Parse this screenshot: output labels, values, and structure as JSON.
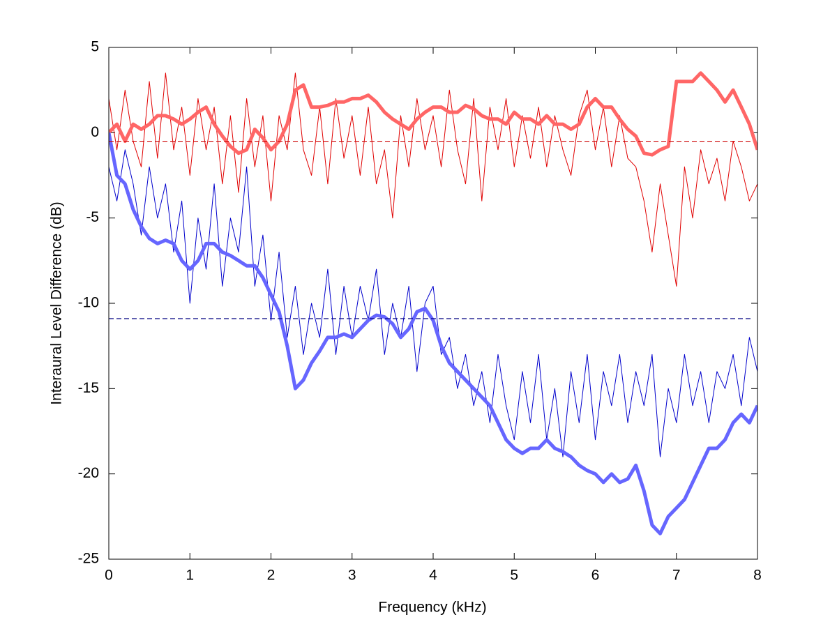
{
  "chart_data": {
    "type": "line",
    "xlabel": "Frequency (kHz)",
    "ylabel": "Interaural Level Difference (dB)",
    "x": [
      0,
      0.1,
      0.2,
      0.3,
      0.4,
      0.5,
      0.6,
      0.7,
      0.8,
      0.9,
      1,
      1.1,
      1.2,
      1.3,
      1.4,
      1.5,
      1.6,
      1.7,
      1.8,
      1.9,
      2,
      2.1,
      2.2,
      2.3,
      2.4,
      2.5,
      2.6,
      2.7,
      2.8,
      2.9,
      3,
      3.1,
      3.2,
      3.3,
      3.4,
      3.5,
      3.6,
      3.7,
      3.8,
      3.9,
      4,
      4.1,
      4.2,
      4.3,
      4.4,
      4.5,
      4.6,
      4.7,
      4.8,
      4.9,
      5,
      5.1,
      5.2,
      5.3,
      5.4,
      5.5,
      5.6,
      5.7,
      5.8,
      5.9,
      6,
      6.1,
      6.2,
      6.3,
      6.4,
      6.5,
      6.6,
      6.7,
      6.8,
      6.9,
      7,
      7.1,
      7.2,
      7.3,
      7.4,
      7.5,
      7.6,
      7.7,
      7.8,
      7.9,
      8
    ],
    "series": [
      {
        "color": "#e00000",
        "line_width": 1,
        "values": [
          2,
          -1,
          2.5,
          -0.5,
          -2,
          3,
          -1.5,
          3.5,
          -1,
          1.5,
          -2.5,
          2,
          -1,
          1.5,
          -3,
          1,
          -3.5,
          2,
          -2,
          1,
          -4,
          1,
          -1,
          3.5,
          -1,
          -2.5,
          1.5,
          -3,
          2,
          -1.5,
          1,
          -2.5,
          1.5,
          -3,
          -1,
          -5,
          1,
          -2,
          2,
          -1,
          1,
          -2,
          2.5,
          -1,
          -3,
          2,
          -4,
          1.5,
          -1,
          2,
          -2,
          1,
          -1.5,
          1.5,
          -2,
          1,
          -1,
          -2.5,
          1,
          2.5,
          -1,
          1.5,
          -2,
          1,
          -1.5,
          -2,
          -4,
          -7,
          -3,
          -6,
          -9,
          -2,
          -5,
          -1,
          -3,
          -1.5,
          -4,
          -0.5,
          -2,
          -4,
          -3
        ]
      },
      {
        "color": "#ff6666",
        "line_width": 5,
        "values": [
          0,
          0.5,
          -0.5,
          0.5,
          0.2,
          0.5,
          1,
          1,
          0.8,
          0.5,
          0.8,
          1.2,
          1.5,
          0.5,
          -0.2,
          -0.8,
          -1.2,
          -1,
          0.2,
          -0.3,
          -1,
          -0.5,
          0.5,
          2.5,
          2.8,
          1.5,
          1.5,
          1.6,
          1.8,
          1.8,
          2,
          2,
          2.2,
          1.8,
          1.2,
          0.8,
          0.5,
          0.2,
          0.8,
          1.2,
          1.5,
          1.5,
          1.2,
          1.2,
          1.6,
          1.4,
          1,
          0.8,
          0.8,
          0.5,
          1.2,
          0.8,
          0.8,
          0.5,
          1,
          0.5,
          0.5,
          0.2,
          0.5,
          1.5,
          2,
          1.5,
          1.5,
          0.8,
          0.2,
          -0.2,
          -1.2,
          -1.3,
          -1,
          -0.8,
          3,
          3,
          3,
          3.5,
          3,
          2.5,
          1.8,
          2.5,
          1.5,
          0.5,
          -1
        ]
      },
      {
        "color": "#0000cc",
        "line_width": 1,
        "values": [
          -2,
          -4,
          -1,
          -3,
          -6,
          -2,
          -5,
          -3,
          -7,
          -4,
          -10,
          -5,
          -8,
          -3,
          -9,
          -5,
          -7,
          -2,
          -9,
          -6,
          -11,
          -7,
          -12,
          -9,
          -13,
          -10,
          -12,
          -8,
          -13,
          -9,
          -12,
          -9,
          -11,
          -8,
          -13,
          -10,
          -12,
          -9,
          -14,
          -10,
          -9,
          -13,
          -12,
          -15,
          -13,
          -16,
          -14,
          -17,
          -13,
          -16,
          -18,
          -14,
          -17,
          -13,
          -18,
          -15,
          -19,
          -14,
          -17,
          -13,
          -18,
          -14,
          -16,
          -13,
          -17,
          -14,
          -16,
          -13,
          -19,
          -15,
          -17,
          -13,
          -16,
          -14,
          -17,
          -14,
          -15,
          -13,
          -16,
          -12,
          -14
        ]
      },
      {
        "color": "#6666ff",
        "line_width": 5,
        "values": [
          0,
          -2.5,
          -3,
          -4.5,
          -5.5,
          -6.2,
          -6.5,
          -6.3,
          -6.5,
          -7.5,
          -8,
          -7.5,
          -6.5,
          -6.5,
          -7,
          -7.2,
          -7.5,
          -7.8,
          -7.8,
          -8.5,
          -9.5,
          -10.5,
          -12.5,
          -15,
          -14.5,
          -13.5,
          -12.8,
          -12,
          -12,
          -11.8,
          -12,
          -11.5,
          -11,
          -10.7,
          -10.8,
          -11.2,
          -12,
          -11.5,
          -10.5,
          -10.3,
          -11,
          -12.5,
          -13.5,
          -14,
          -14.5,
          -15,
          -15.5,
          -16,
          -17,
          -18,
          -18.5,
          -18.8,
          -18.5,
          -18.5,
          -18,
          -18.5,
          -18.7,
          -19,
          -19.5,
          -19.8,
          -20,
          -20.5,
          -20,
          -20.5,
          -20.3,
          -19.5,
          -21,
          -23,
          -23.5,
          -22.5,
          -22,
          -21.5,
          -20.5,
          -19.5,
          -18.5,
          -18.5,
          -18,
          -17,
          -16.5,
          -17,
          -16
        ]
      }
    ],
    "reference_lines": [
      {
        "value": -0.5,
        "color": "#cc0000"
      },
      {
        "value": -10.9,
        "color": "#000080"
      }
    ],
    "xlim": [
      0,
      8
    ],
    "xticks": [
      0,
      1,
      2,
      3,
      4,
      5,
      6,
      7,
      8
    ],
    "ylim": [
      -25,
      5
    ],
    "yticks": [
      -25,
      -20,
      -15,
      -10,
      -5,
      0,
      5
    ]
  }
}
